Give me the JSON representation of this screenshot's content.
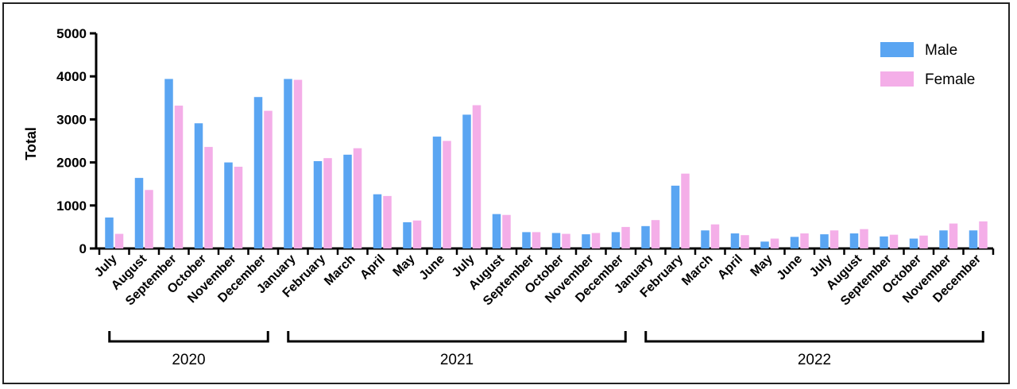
{
  "chart_data": {
    "type": "bar",
    "ylabel": "Total",
    "ylim": [
      0,
      5000
    ],
    "yticks": [
      0,
      1000,
      2000,
      3000,
      4000,
      5000
    ],
    "grid": false,
    "legend_position": "top-right",
    "categories": [
      "July",
      "August",
      "September",
      "October",
      "November",
      "December",
      "January",
      "February",
      "March",
      "April",
      "May",
      "June",
      "July",
      "August",
      "September",
      "October",
      "November",
      "December",
      "January",
      "February",
      "March",
      "April",
      "May",
      "June",
      "July",
      "August",
      "September",
      "October",
      "November",
      "December"
    ],
    "series": [
      {
        "name": "Male",
        "color": "#5aa5f2",
        "values": [
          720,
          1640,
          3940,
          2910,
          2000,
          3520,
          3940,
          2030,
          2180,
          1260,
          610,
          2600,
          3110,
          800,
          380,
          360,
          330,
          380,
          520,
          1460,
          420,
          350,
          160,
          270,
          330,
          350,
          280,
          230,
          420,
          420
        ]
      },
      {
        "name": "Female",
        "color": "#f4aee8",
        "values": [
          340,
          1360,
          3320,
          2360,
          1900,
          3200,
          3920,
          2100,
          2330,
          1220,
          650,
          2500,
          3330,
          780,
          380,
          340,
          360,
          500,
          660,
          1740,
          560,
          310,
          230,
          350,
          420,
          450,
          320,
          300,
          580,
          630
        ]
      }
    ],
    "groups": [
      {
        "label": "2020",
        "from": 0,
        "to": 5
      },
      {
        "label": "2021",
        "from": 6,
        "to": 17
      },
      {
        "label": "2022",
        "from": 18,
        "to": 29
      }
    ]
  }
}
